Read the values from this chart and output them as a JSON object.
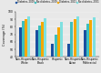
{
  "legend_labels": [
    "Diabetes, 2009",
    "No diabetes, 2009",
    "Diabetes, 2021",
    "No diabetes, 2021"
  ],
  "colors": [
    "#1a4fa0",
    "#3dbfbf",
    "#f5a800",
    "#7ee0e0"
  ],
  "categories": [
    "Non-Hispanic\nWhite",
    "Non-Hispanic\nBlack",
    "Hispanic",
    "Non-Hispanic\nAsian",
    "Non-Hispanic\nMultiracial"
  ],
  "values": [
    [
      79,
      76,
      58,
      57,
      75
    ],
    [
      88,
      82,
      70,
      87,
      84
    ],
    [
      90,
      86,
      79,
      90,
      89
    ],
    [
      94,
      91,
      87,
      94,
      92
    ]
  ],
  "ylabel": "Coverage (%)",
  "ylim": [
    40,
    100
  ],
  "yticks": [
    40,
    50,
    60,
    70,
    80,
    90,
    100
  ],
  "background_color": "#e8e8e8",
  "bar_width": 0.18,
  "label_fontsize": 2.5,
  "tick_fontsize": 2.2,
  "legend_fontsize": 1.8
}
